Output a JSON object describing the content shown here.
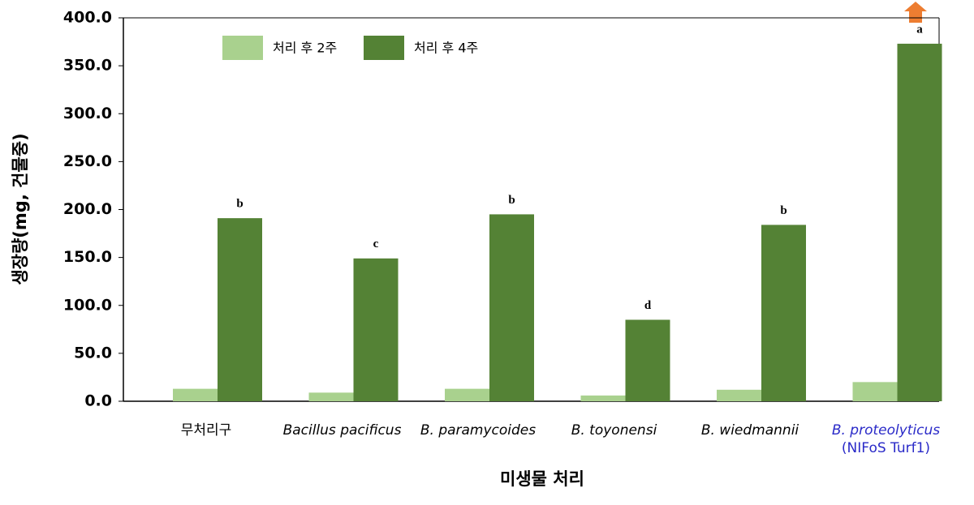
{
  "chart_data": {
    "type": "bar",
    "y_label": "생장량(mg, 건물중)",
    "x_label": "미생물 처리",
    "categories": [
      [
        "무처리구"
      ],
      [
        "Bacillus pacificus"
      ],
      [
        "B. paramycoides"
      ],
      [
        "B. toyonensi"
      ],
      [
        "B. wiedmannii"
      ],
      [
        "B. proteolyticus",
        "(NIFoS Turf1)"
      ]
    ],
    "category_italic": [
      false,
      true,
      true,
      true,
      true,
      true
    ],
    "category_colors": [
      "#000000",
      "#000000",
      "#000000",
      "#000000",
      "#000000",
      "#2a2ac8"
    ],
    "series": [
      {
        "name": "처리 후 2주",
        "color": "#a9d18e",
        "values": [
          13,
          9,
          13,
          6,
          12,
          20
        ]
      },
      {
        "name": "처리 후 4주",
        "color": "#548235",
        "values": [
          191,
          149,
          195,
          85,
          184,
          373
        ]
      }
    ],
    "significance": [
      "b",
      "c",
      "b",
      "d",
      "b",
      "a"
    ],
    "ylim": [
      0,
      400
    ],
    "yticks": [
      {
        "value": 0,
        "label": "0.0"
      },
      {
        "value": 50,
        "label": "50.0"
      },
      {
        "value": 100,
        "label": "100.0"
      },
      {
        "value": 150,
        "label": "150.0"
      },
      {
        "value": 200,
        "label": "200.0"
      },
      {
        "value": 250,
        "label": "250.0"
      },
      {
        "value": 300,
        "label": "300.0"
      },
      {
        "value": 350,
        "label": "350.0"
      },
      {
        "value": 400,
        "label": "400.0"
      }
    ],
    "grid": false
  }
}
